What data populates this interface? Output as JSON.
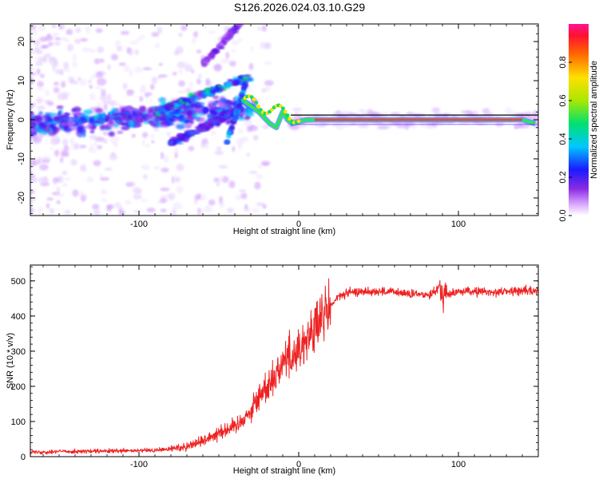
{
  "title": "S126.2026.024.03.10.G29",
  "colors": {
    "snr_line": "#ee2222",
    "axis": "#000000",
    "background": "#ffffff"
  },
  "chart_data": [
    {
      "type": "heatmap",
      "name": "spectrogram",
      "xlabel": "Height of straight line (km)",
      "ylabel": "Frequency (Hz)",
      "xlim": [
        -168,
        150
      ],
      "ylim": [
        -24.5,
        24.5
      ],
      "xticks": [
        -100,
        0,
        100
      ],
      "yticks": [
        -20,
        -10,
        0,
        10,
        20
      ],
      "colorbar": {
        "label": "Normalized spectral amplitude",
        "range": [
          0,
          1
        ],
        "ticks": [
          0.0,
          0.2,
          0.4,
          0.6,
          0.8
        ],
        "tick_labels": [
          "0.0",
          "0.2",
          "0.4",
          "0.6",
          "0.8"
        ]
      },
      "ridge": {
        "description_points_x": [
          -35,
          -25,
          -18,
          -14,
          -10,
          -7,
          -4,
          0,
          5,
          10,
          20,
          60,
          100,
          140,
          148
        ],
        "description_points_y": [
          5,
          2,
          -1,
          -2,
          2,
          0,
          -1,
          -0.5,
          0,
          0,
          0,
          0,
          0,
          0,
          -1
        ],
        "strong_from_x": 10
      }
    },
    {
      "type": "line",
      "name": "snr",
      "xlabel": "Height of straight line (km)",
      "ylabel": "SNR (10 * v/v)",
      "xlim": [
        -168,
        150
      ],
      "ylim": [
        0,
        545
      ],
      "xticks": [
        -100,
        0,
        100
      ],
      "yticks": [
        0,
        100,
        200,
        300,
        400,
        500
      ],
      "series": [
        {
          "name": "SNR",
          "x": [
            -168,
            -150,
            -130,
            -110,
            -90,
            -80,
            -70,
            -60,
            -50,
            -40,
            -30,
            -25,
            -20,
            -15,
            -10,
            -5,
            0,
            5,
            10,
            15,
            20,
            25,
            30,
            40,
            50,
            60,
            70,
            80,
            85,
            88,
            90,
            92,
            95,
            100,
            110,
            120,
            130,
            140,
            150
          ],
          "values": [
            12,
            15,
            15,
            16,
            18,
            22,
            30,
            45,
            70,
            85,
            130,
            170,
            200,
            230,
            270,
            290,
            300,
            340,
            360,
            395,
            430,
            455,
            465,
            470,
            470,
            468,
            462,
            460,
            470,
            485,
            455,
            470,
            460,
            470,
            470,
            468,
            470,
            472,
            470
          ]
        }
      ]
    }
  ]
}
